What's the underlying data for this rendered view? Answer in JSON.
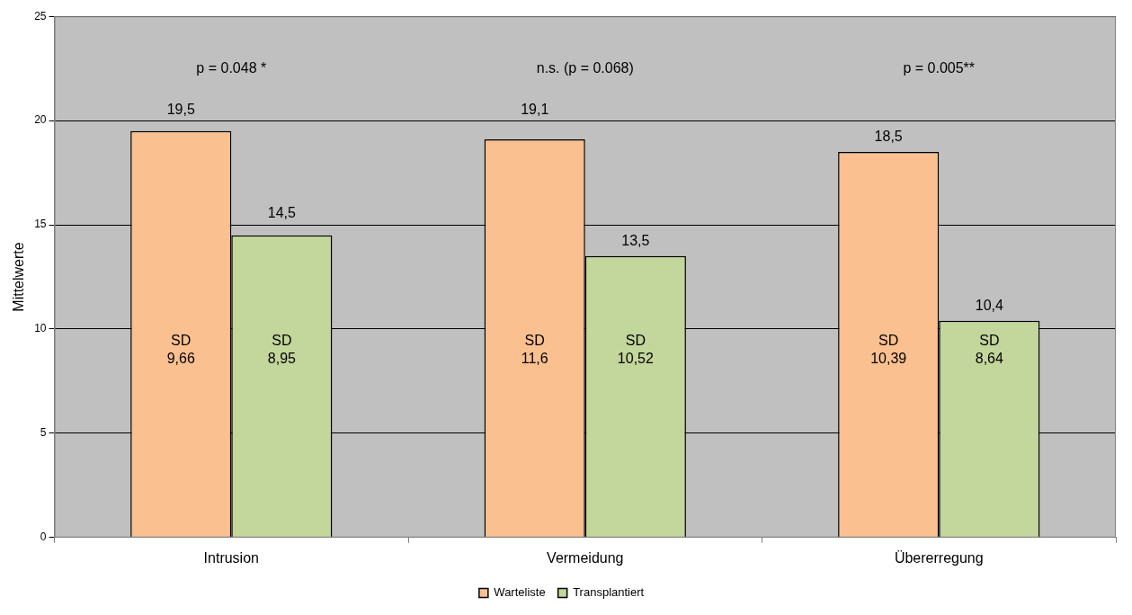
{
  "chart_data": {
    "type": "bar",
    "ylabel": "Mittelwerte",
    "categories": [
      "Intrusion",
      "Vermeidung",
      "Übererregung"
    ],
    "series": [
      {
        "name": "Warteliste",
        "color": "#fac090",
        "values": [
          19.5,
          19.1,
          18.5
        ],
        "value_labels": [
          "19,5",
          "19,1",
          "18,5"
        ]
      },
      {
        "name": "Transplantiert",
        "color": "#c3d69b",
        "values": [
          14.5,
          13.5,
          10.4
        ],
        "value_labels": [
          "14,5",
          "13,5",
          "10,4"
        ]
      }
    ],
    "ylim": [
      0,
      25
    ],
    "yticks": [
      0,
      5,
      10,
      15,
      20,
      25
    ],
    "grid": "y",
    "legend": "bottom",
    "annotations": [
      "p = 0.048 *",
      "n.s. (p = 0.068)",
      "p = 0.005**",
      {
        "text": "SD\n9,66",
        "x": "Intrusion",
        "y": 9
      },
      {
        "text": "SD\n8,95",
        "x": "Intrusion",
        "y": 9
      },
      {
        "text": "SD\n11,6",
        "x": "Vermeidung",
        "y": 9
      },
      {
        "text": "SD\n10,52",
        "x": "Vermeidung",
        "y": 9
      },
      {
        "text": "SD\n10,39",
        "x": "Übererregung",
        "y": 9
      },
      {
        "text": "SD\n8,64",
        "x": "Übererregung",
        "y": 9
      }
    ]
  }
}
